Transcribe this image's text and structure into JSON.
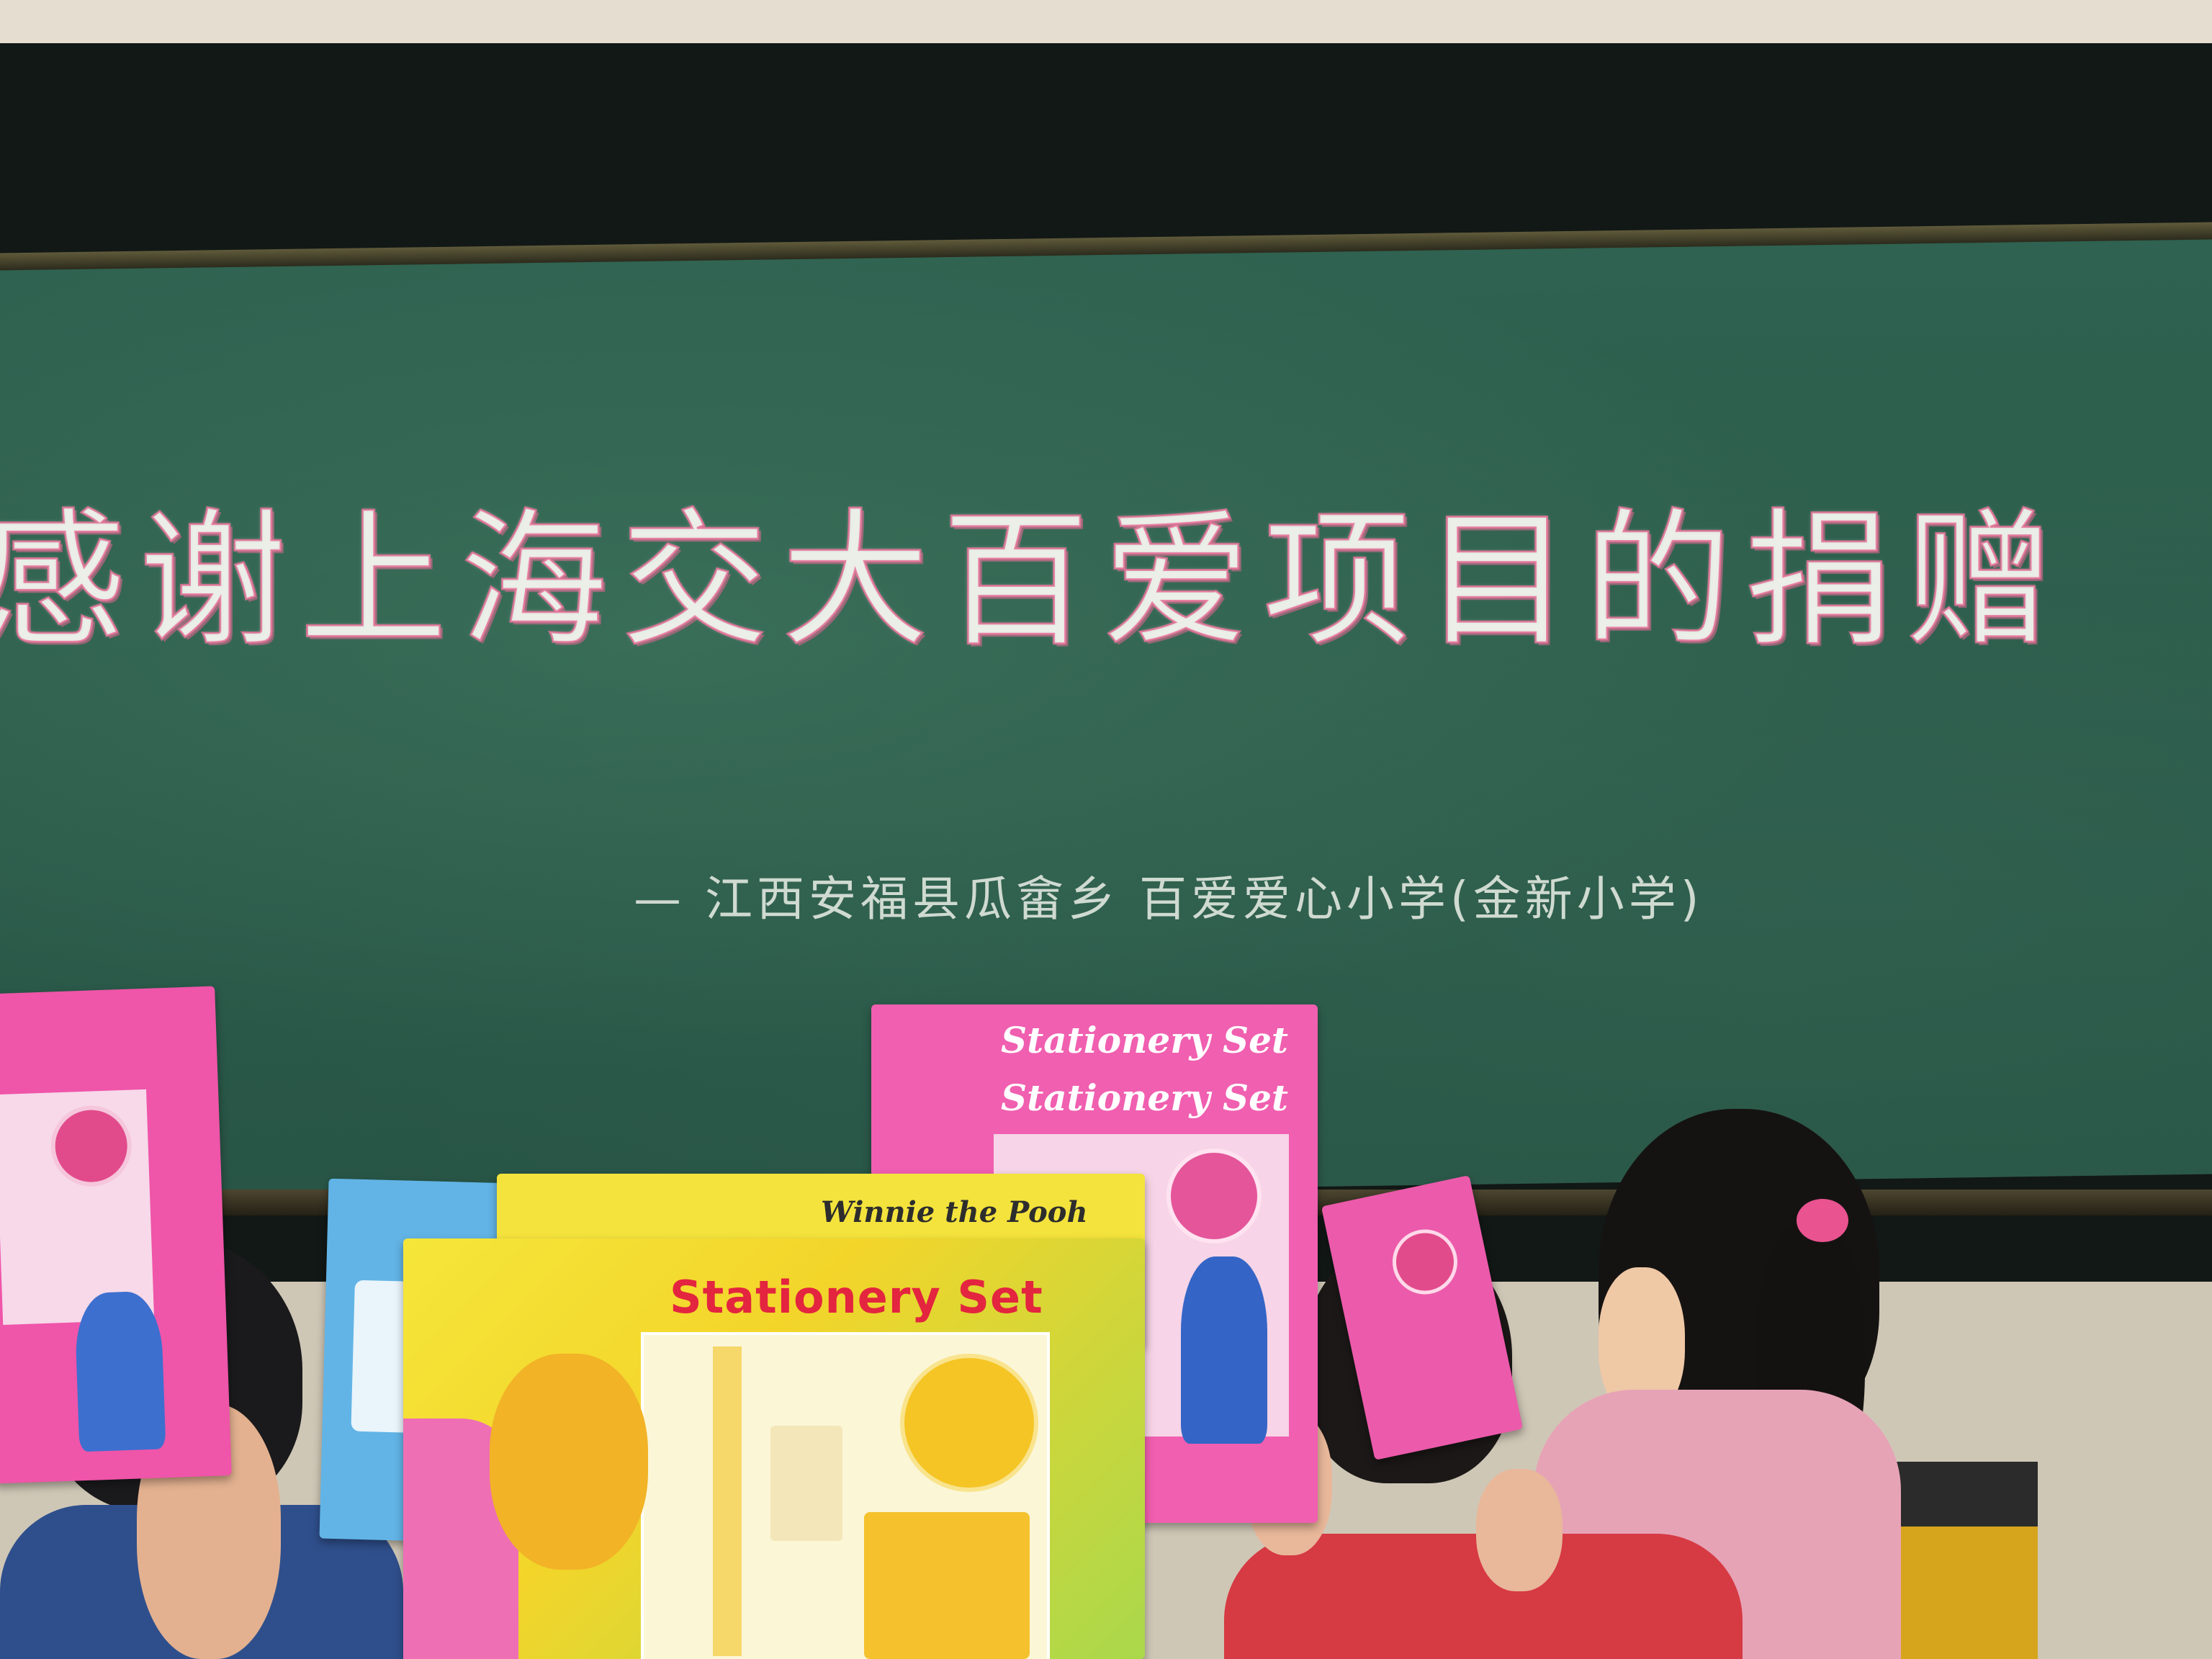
{
  "chalkboard": {
    "headline": "感谢上海交大百爱项目的捐赠",
    "signature": "— 江西安福县瓜畲乡 百爱爱心小学(金新小学)"
  },
  "gift_boxes": [
    {
      "label": "Stationery Set",
      "subtitle": "Winnie the Pooh"
    },
    {
      "label": "Stationery Set"
    },
    {
      "label": "Stationery Set"
    },
    {
      "label": "Stationery Set"
    }
  ],
  "colors": {
    "chalkboard": "#2c5c4b",
    "chalk": "#eef3ec",
    "chalk_outline": "#e06e96",
    "box_pink": "#f04fa8",
    "box_yellow": "#f7e03a",
    "box_blue": "#5aa9e0"
  }
}
